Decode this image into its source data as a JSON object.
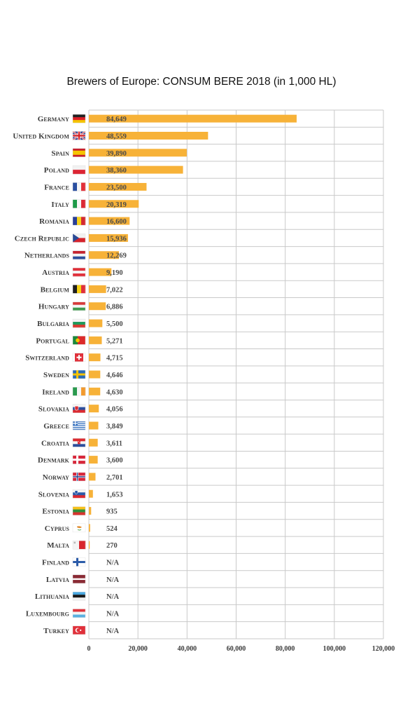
{
  "chart_data": {
    "type": "bar",
    "orientation": "horizontal",
    "title": "Brewers of Europe: CONSUM BERE 2018 (in 1,000 HL)",
    "xlim": [
      0,
      120000
    ],
    "x_ticks": [
      "0",
      "20,000",
      "40,000",
      "60,000",
      "80,000",
      "100,000",
      "120,000"
    ],
    "grid": true,
    "bar_color": "#f7b238",
    "categories": [
      {
        "name": "Germany",
        "value": 84649,
        "label": "84,649",
        "flag": "germany-flag"
      },
      {
        "name": "United Kingdom",
        "value": 48559,
        "label": "48,559",
        "flag": "united-kingdom-flag"
      },
      {
        "name": "Spain",
        "value": 39890,
        "label": "39,890",
        "flag": "spain-flag"
      },
      {
        "name": "Poland",
        "value": 38360,
        "label": "38,360",
        "flag": "poland-flag"
      },
      {
        "name": "France",
        "value": 23500,
        "label": "23,500",
        "flag": "france-flag"
      },
      {
        "name": "Italy",
        "value": 20319,
        "label": "20,319",
        "flag": "italy-flag"
      },
      {
        "name": "Romania",
        "value": 16600,
        "label": "16,600",
        "flag": "romania-flag"
      },
      {
        "name": "Czech Republic",
        "value": 15936,
        "label": "15,936",
        "flag": "czech-republic-flag"
      },
      {
        "name": "Netherlands",
        "value": 12269,
        "label": "12,269",
        "flag": "netherlands-flag"
      },
      {
        "name": "Austria",
        "value": 9190,
        "label": "9,190",
        "flag": "austria-flag"
      },
      {
        "name": "Belgium",
        "value": 7022,
        "label": "7,022",
        "flag": "belgium-flag"
      },
      {
        "name": "Hungary",
        "value": 6886,
        "label": "6,886",
        "flag": "hungary-flag"
      },
      {
        "name": "Bulgaria",
        "value": 5500,
        "label": "5,500",
        "flag": "bulgaria-flag"
      },
      {
        "name": "Portugal",
        "value": 5271,
        "label": "5,271",
        "flag": "portugal-flag"
      },
      {
        "name": "Switzerland",
        "value": 4715,
        "label": "4,715",
        "flag": "switzerland-flag"
      },
      {
        "name": "Sweden",
        "value": 4646,
        "label": "4,646",
        "flag": "sweden-flag"
      },
      {
        "name": "Ireland",
        "value": 4630,
        "label": "4,630",
        "flag": "ireland-flag"
      },
      {
        "name": "Slovakia",
        "value": 4056,
        "label": "4,056",
        "flag": "slovakia-flag"
      },
      {
        "name": "Greece",
        "value": 3849,
        "label": "3,849",
        "flag": "greece-flag"
      },
      {
        "name": "Croatia",
        "value": 3611,
        "label": "3,611",
        "flag": "croatia-flag"
      },
      {
        "name": "Denmark",
        "value": 3600,
        "label": "3,600",
        "flag": "denmark-flag"
      },
      {
        "name": "Norway",
        "value": 2701,
        "label": "2,701",
        "flag": "norway-flag"
      },
      {
        "name": "Slovenia",
        "value": 1653,
        "label": "1,653",
        "flag": "slovenia-flag"
      },
      {
        "name": "Estonia",
        "value": 935,
        "label": "935",
        "flag": "estonia-flag"
      },
      {
        "name": "Cyprus",
        "value": 524,
        "label": "524",
        "flag": "cyprus-flag"
      },
      {
        "name": "Malta",
        "value": 270,
        "label": "270",
        "flag": "malta-flag"
      },
      {
        "name": "Finland",
        "value": null,
        "label": "N/A",
        "flag": "finland-flag"
      },
      {
        "name": "Latvia",
        "value": null,
        "label": "N/A",
        "flag": "latvia-flag"
      },
      {
        "name": "Lithuania",
        "value": null,
        "label": "N/A",
        "flag": "lithuania-flag"
      },
      {
        "name": "Luxembourg",
        "value": null,
        "label": "N/A",
        "flag": "luxembourg-flag"
      },
      {
        "name": "Turkey",
        "value": null,
        "label": "N/A",
        "flag": "turkey-flag"
      }
    ]
  }
}
